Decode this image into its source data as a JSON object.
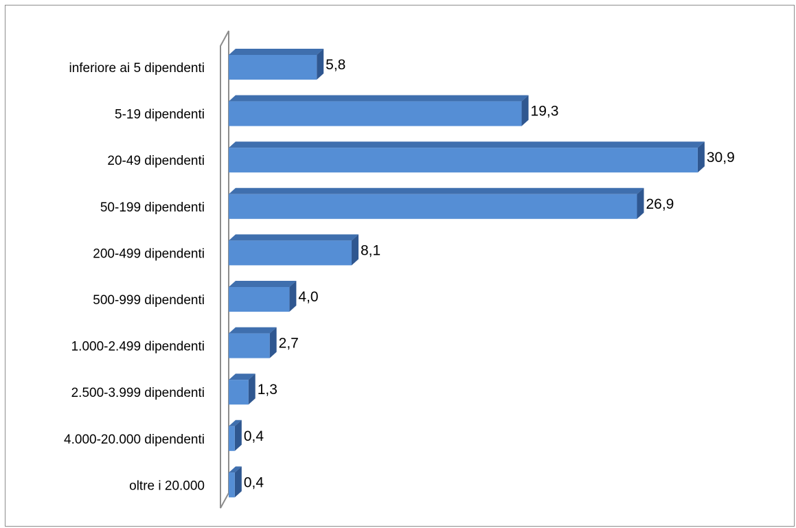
{
  "chart_data": {
    "type": "bar",
    "orientation": "horizontal",
    "style": "3d",
    "title": "",
    "xlabel": "",
    "ylabel": "",
    "grid": false,
    "legend": "none",
    "xlim": [
      0,
      30.9
    ],
    "categories": [
      "inferiore ai 5 dipendenti",
      "5-19 dipendenti",
      "20-49 dipendenti",
      "50-199 dipendenti",
      "200-499 dipendenti",
      "500-999 dipendenti",
      "1.000-2.499 dipendenti",
      "2.500-3.999 dipendenti",
      "4.000-20.000 dipendenti",
      "oltre i 20.000"
    ],
    "values": [
      5.8,
      19.3,
      30.9,
      26.9,
      8.1,
      4.0,
      2.7,
      1.3,
      0.4,
      0.4
    ],
    "value_labels": [
      "5,8",
      "19,3",
      "30,9",
      "26,9",
      "8,1",
      "4,0",
      "2,7",
      "1,3",
      "0,4",
      "0,4"
    ],
    "colors": {
      "bar_front": "#558ed5",
      "bar_top": "#3f6fae",
      "bar_side": "#2f5790",
      "axis_wall": "#8c8c8c"
    }
  }
}
